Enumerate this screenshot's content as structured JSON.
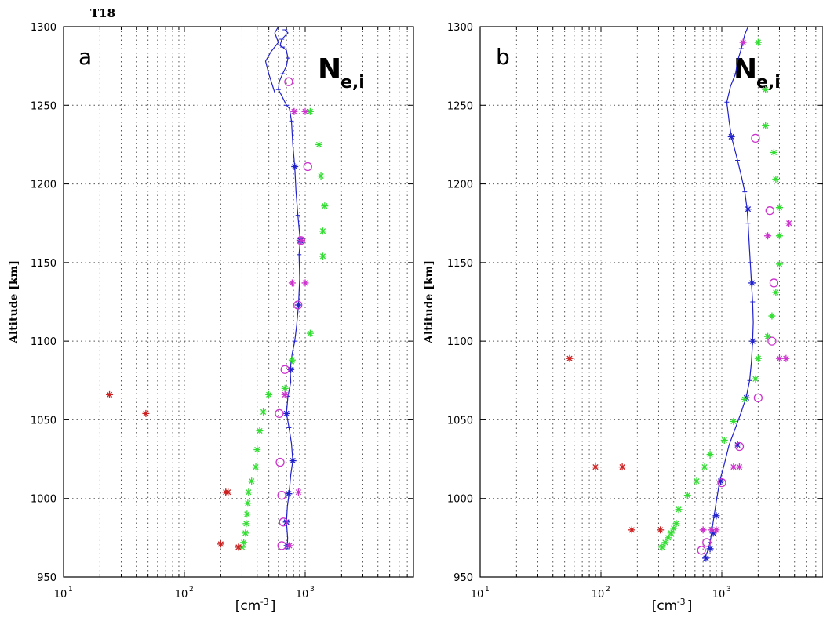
{
  "figure": {
    "label": "T18"
  },
  "chart_data": [
    {
      "type": "scatter",
      "panel_letter": "a",
      "annotation_main": "N",
      "annotation_sub": "e,i",
      "xlabel": "[cm",
      "xlabel_sup": "-3",
      "xlabel_close": "]",
      "ylabel": "Altitude [km]",
      "xscale": "log",
      "xlim": [
        10,
        7000
      ],
      "ylim": [
        950,
        1300
      ],
      "y_ticks": [
        950,
        1000,
        1050,
        1100,
        1150,
        1200,
        1250,
        1300
      ],
      "x_ticks": [
        {
          "value": 10,
          "base": "10",
          "exp": "1"
        },
        {
          "value": 100,
          "base": "10",
          "exp": "2"
        },
        {
          "value": 1000,
          "base": "10",
          "exp": "3"
        }
      ],
      "grid": true,
      "series": [
        {
          "color": "#2020cc",
          "marker": "line",
          "points": [
            [
              710,
              968
            ],
            [
              715,
              975
            ],
            [
              700,
              985
            ],
            [
              712,
              995
            ],
            [
              735,
              1003
            ],
            [
              760,
              1015
            ],
            [
              790,
              1024
            ],
            [
              770,
              1035
            ],
            [
              735,
              1045
            ],
            [
              700,
              1054
            ],
            [
              720,
              1065
            ],
            [
              760,
              1074
            ],
            [
              750,
              1082
            ],
            [
              780,
              1092
            ],
            [
              820,
              1100
            ],
            [
              850,
              1110
            ],
            [
              880,
              1123
            ],
            [
              900,
              1140
            ],
            [
              890,
              1155
            ],
            [
              910,
              1164
            ],
            [
              870,
              1180
            ],
            [
              840,
              1195
            ],
            [
              820,
              1211
            ],
            [
              790,
              1225
            ],
            [
              770,
              1240
            ],
            [
              740,
              1248
            ],
            [
              700,
              1250
            ],
            [
              640,
              1256
            ],
            [
              600,
              1260
            ],
            [
              610,
              1265
            ],
            [
              650,
              1270
            ],
            [
              700,
              1275
            ],
            [
              720,
              1280
            ],
            [
              700,
              1285
            ],
            [
              650,
              1287
            ],
            [
              620,
              1288
            ],
            [
              640,
              1292
            ],
            [
              720,
              1296
            ],
            [
              680,
              1298
            ]
          ],
          "secondary_points": [
            [
              560,
              1258
            ],
            [
              500,
              1270
            ],
            [
              470,
              1278
            ],
            [
              520,
              1284
            ],
            [
              600,
              1290
            ],
            [
              560,
              1296
            ],
            [
              600,
              1300
            ]
          ]
        },
        {
          "color": "#2020cc",
          "marker": "star",
          "points": [
            [
              710,
              970
            ],
            [
              700,
              985
            ],
            [
              730,
              1003
            ],
            [
              790,
              1024
            ],
            [
              700,
              1054
            ],
            [
              760,
              1082
            ],
            [
              880,
              1123
            ],
            [
              910,
              1164
            ],
            [
              820,
              1211
            ]
          ]
        },
        {
          "color": "#33dd33",
          "marker": "star",
          "points": [
            [
              300,
              969
            ],
            [
              310,
              972
            ],
            [
              320,
              978
            ],
            [
              325,
              984
            ],
            [
              330,
              990
            ],
            [
              335,
              997
            ],
            [
              340,
              1004
            ],
            [
              360,
              1011
            ],
            [
              390,
              1020
            ],
            [
              400,
              1031
            ],
            [
              420,
              1043
            ],
            [
              450,
              1055
            ],
            [
              500,
              1066
            ],
            [
              680,
              1070
            ],
            [
              780,
              1088
            ],
            [
              1100,
              1105
            ],
            [
              1400,
              1154
            ],
            [
              1400,
              1170
            ],
            [
              1450,
              1186
            ],
            [
              1350,
              1205
            ],
            [
              1300,
              1225
            ],
            [
              1100,
              1246
            ]
          ]
        },
        {
          "color": "#cc33cc",
          "marker": "circle",
          "points": [
            [
              640,
              970
            ],
            [
              660,
              985
            ],
            [
              640,
              1002
            ],
            [
              620,
              1023
            ],
            [
              610,
              1054
            ],
            [
              680,
              1082
            ],
            [
              870,
              1123
            ],
            [
              920,
              1164
            ],
            [
              1050,
              1211
            ],
            [
              730,
              1265
            ]
          ]
        },
        {
          "color": "#cc33cc",
          "marker": "star",
          "points": [
            [
              740,
              970
            ],
            [
              880,
              1004
            ],
            [
              680,
              1066
            ],
            [
              780,
              1137
            ],
            [
              1000,
              1137
            ],
            [
              930,
              1164
            ],
            [
              810,
              1246
            ],
            [
              1000,
              1246
            ]
          ]
        },
        {
          "color": "#cc2222",
          "marker": "star",
          "points": [
            [
              280,
              969
            ],
            [
              200,
              971
            ],
            [
              220,
              1004
            ],
            [
              230,
              1004
            ],
            [
              48,
              1054
            ],
            [
              24,
              1066
            ]
          ]
        }
      ]
    },
    {
      "type": "scatter",
      "panel_letter": "b",
      "annotation_main": "N",
      "annotation_sub": "e,i",
      "xlabel": "[cm",
      "xlabel_sup": "-3",
      "xlabel_close": "]",
      "ylabel": "Altitude [km]",
      "xscale": "log",
      "xlim": [
        10,
        7000
      ],
      "ylim": [
        950,
        1300
      ],
      "y_ticks": [
        950,
        1000,
        1050,
        1100,
        1150,
        1200,
        1250,
        1300
      ],
      "x_ticks": [
        {
          "value": 10,
          "base": "10",
          "exp": "1"
        },
        {
          "value": 100,
          "base": "10",
          "exp": "2"
        },
        {
          "value": 1000,
          "base": "10",
          "exp": "3"
        }
      ],
      "grid": true,
      "series": [
        {
          "color": "#2020cc",
          "marker": "line",
          "points": [
            [
              720,
              962
            ],
            [
              760,
              966
            ],
            [
              800,
              972
            ],
            [
              830,
              980
            ],
            [
              860,
              988
            ],
            [
              900,
              998
            ],
            [
              960,
              1011
            ],
            [
              1050,
              1022
            ],
            [
              1150,
              1034
            ],
            [
              1300,
              1045
            ],
            [
              1450,
              1055
            ],
            [
              1600,
              1065
            ],
            [
              1700,
              1075
            ],
            [
              1760,
              1087
            ],
            [
              1800,
              1100
            ],
            [
              1820,
              1112
            ],
            [
              1800,
              1125
            ],
            [
              1760,
              1137
            ],
            [
              1720,
              1150
            ],
            [
              1680,
              1164
            ],
            [
              1650,
              1175
            ],
            [
              1620,
              1184
            ],
            [
              1550,
              1195
            ],
            [
              1450,
              1205
            ],
            [
              1350,
              1215
            ],
            [
              1250,
              1225
            ],
            [
              1200,
              1230
            ],
            [
              1150,
              1240
            ],
            [
              1100,
              1252
            ],
            [
              1180,
              1262
            ],
            [
              1300,
              1270
            ],
            [
              1350,
              1278
            ],
            [
              1450,
              1286
            ],
            [
              1550,
              1295
            ],
            [
              1650,
              1300
            ]
          ]
        },
        {
          "color": "#2020cc",
          "marker": "star",
          "points": [
            [
              740,
              962
            ],
            [
              800,
              968
            ],
            [
              850,
              978
            ],
            [
              900,
              989
            ],
            [
              980,
              1011
            ],
            [
              1350,
              1034
            ],
            [
              1600,
              1064
            ],
            [
              1800,
              1100
            ],
            [
              1780,
              1137
            ],
            [
              1650,
              1184
            ],
            [
              1200,
              1230
            ]
          ]
        },
        {
          "color": "#33dd33",
          "marker": "star",
          "points": [
            [
              320,
              969
            ],
            [
              340,
              972
            ],
            [
              360,
              975
            ],
            [
              380,
              978
            ],
            [
              400,
              981
            ],
            [
              420,
              984
            ],
            [
              440,
              993
            ],
            [
              520,
              1002
            ],
            [
              620,
              1011
            ],
            [
              720,
              1020
            ],
            [
              800,
              1028
            ],
            [
              1050,
              1037
            ],
            [
              1250,
              1049
            ],
            [
              1550,
              1063
            ],
            [
              1900,
              1076
            ],
            [
              2000,
              1089
            ],
            [
              2400,
              1103
            ],
            [
              2600,
              1116
            ],
            [
              2800,
              1131
            ],
            [
              3000,
              1149
            ],
            [
              3000,
              1167
            ],
            [
              3000,
              1185
            ],
            [
              2800,
              1203
            ],
            [
              2700,
              1220
            ],
            [
              2300,
              1237
            ],
            [
              2300,
              1260
            ],
            [
              2000,
              1290
            ]
          ]
        },
        {
          "color": "#cc33cc",
          "marker": "circle",
          "points": [
            [
              680,
              967
            ],
            [
              750,
              972
            ],
            [
              1000,
              1010
            ],
            [
              1400,
              1033
            ],
            [
              2000,
              1064
            ],
            [
              2600,
              1100
            ],
            [
              2700,
              1137
            ],
            [
              2500,
              1183
            ],
            [
              1900,
              1229
            ]
          ]
        },
        {
          "color": "#cc33cc",
          "marker": "star",
          "points": [
            [
              700,
              980
            ],
            [
              820,
              980
            ],
            [
              900,
              980
            ],
            [
              1250,
              1020
            ],
            [
              1400,
              1020
            ],
            [
              2400,
              1167
            ],
            [
              3600,
              1175
            ],
            [
              3000,
              1089
            ],
            [
              3400,
              1089
            ],
            [
              1500,
              1290
            ]
          ]
        },
        {
          "color": "#cc2222",
          "marker": "star",
          "points": [
            [
              55,
              1089
            ],
            [
              90,
              1020
            ],
            [
              150,
              1020
            ],
            [
              180,
              980
            ],
            [
              310,
              980
            ]
          ]
        }
      ]
    }
  ]
}
